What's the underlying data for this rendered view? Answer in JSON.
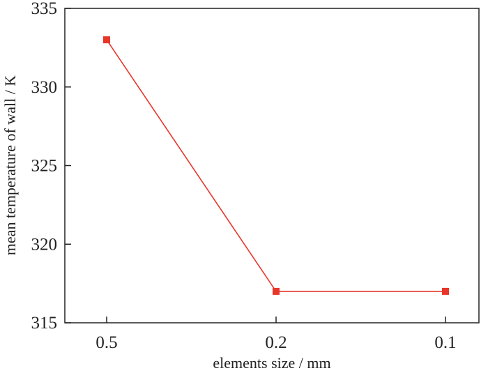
{
  "chart_data": {
    "type": "line",
    "categories": [
      "0.5",
      "0.2",
      "0.1"
    ],
    "series": [
      {
        "values": [
          333,
          317,
          317
        ],
        "color": "#e8362a",
        "marker": "square"
      }
    ],
    "title": "",
    "xlabel": "elements size / mm",
    "ylabel": "mean temperature of wall / K",
    "ylim": [
      315,
      335
    ],
    "yticks": [
      315,
      320,
      325,
      330,
      335
    ],
    "grid": false,
    "legend": "none"
  }
}
